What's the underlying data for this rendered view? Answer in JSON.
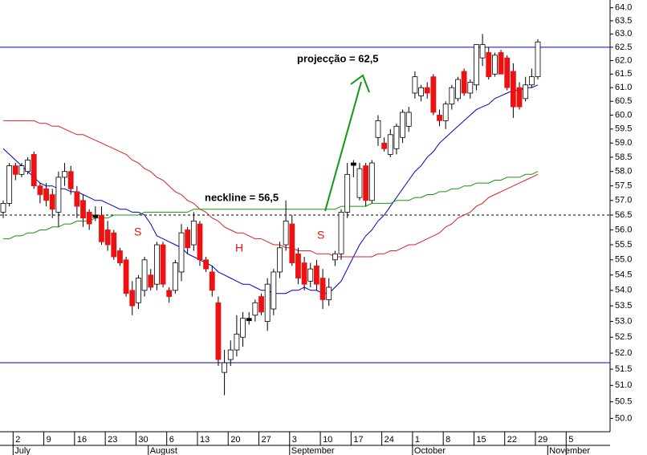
{
  "chart_data": {
    "type": "candlestick",
    "log_scale": true,
    "ylim": [
      49.6,
      64.3
    ],
    "yticks": [
      {
        "value": 50,
        "label": "50.0"
      },
      {
        "value": 50.5,
        "label": "50.5"
      },
      {
        "value": 51,
        "label": "51.0"
      },
      {
        "value": 51.5,
        "label": "51.5"
      },
      {
        "value": 52,
        "label": "52.0"
      },
      {
        "value": 52.5,
        "label": "52.5"
      },
      {
        "value": 53,
        "label": "53.0"
      },
      {
        "value": 53.5,
        "label": "53.5"
      },
      {
        "value": 54,
        "label": "54.0"
      },
      {
        "value": 54.5,
        "label": "54.5"
      },
      {
        "value": 55,
        "label": "55.0"
      },
      {
        "value": 55.5,
        "label": "55.5"
      },
      {
        "value": 56,
        "label": "56.0"
      },
      {
        "value": 56.5,
        "label": "56.5"
      },
      {
        "value": 57,
        "label": "57.0"
      },
      {
        "value": 57.5,
        "label": "57.5"
      },
      {
        "value": 58,
        "label": "58.0"
      },
      {
        "value": 58.5,
        "label": "58.5"
      },
      {
        "value": 59,
        "label": "59.0"
      },
      {
        "value": 59.5,
        "label": "59.5"
      },
      {
        "value": 60,
        "label": "60.0"
      },
      {
        "value": 60.5,
        "label": "60.5"
      },
      {
        "value": 61,
        "label": "61.0"
      },
      {
        "value": 61.5,
        "label": "61.5"
      },
      {
        "value": 62,
        "label": "62.0"
      },
      {
        "value": 62.5,
        "label": "62.5"
      },
      {
        "value": 63,
        "label": "63.0"
      },
      {
        "value": 63.5,
        "label": "63.5"
      },
      {
        "value": 64,
        "label": "64.0"
      }
    ],
    "categories": [
      null,
      null,
      "2",
      null,
      null,
      null,
      null,
      "9",
      null,
      null,
      null,
      null,
      "16",
      null,
      null,
      null,
      null,
      "23",
      null,
      null,
      null,
      null,
      "30",
      null,
      null,
      null,
      null,
      "6",
      null,
      null,
      null,
      null,
      "13",
      null,
      null,
      null,
      null,
      "20",
      null,
      null,
      null,
      null,
      "27",
      null,
      null,
      null,
      null,
      "3",
      null,
      null,
      null,
      null,
      "10",
      null,
      null,
      null,
      null,
      "17",
      null,
      null,
      null,
      null,
      "24",
      null,
      null,
      null,
      null,
      "1",
      null,
      null,
      null,
      null,
      "8",
      null,
      null,
      null,
      null,
      "15",
      null,
      null,
      null,
      null,
      "22",
      null,
      null,
      null,
      null,
      "29",
      null,
      null,
      null,
      null,
      "5"
    ],
    "months": [
      null,
      null,
      "July",
      null,
      null,
      null,
      null,
      null,
      null,
      null,
      null,
      null,
      null,
      null,
      null,
      null,
      null,
      null,
      null,
      null,
      null,
      null,
      null,
      null,
      "August",
      null,
      null,
      null,
      null,
      null,
      null,
      null,
      null,
      null,
      null,
      null,
      null,
      null,
      null,
      null,
      null,
      null,
      null,
      null,
      null,
      null,
      null,
      "September",
      null,
      null,
      null,
      null,
      null,
      null,
      null,
      null,
      null,
      null,
      null,
      null,
      null,
      null,
      null,
      null,
      null,
      null,
      null,
      "October",
      null,
      null,
      null,
      null,
      null,
      null,
      null,
      null,
      null,
      null,
      null,
      null,
      null,
      null,
      null,
      null,
      null,
      null,
      null,
      null,
      null,
      "November",
      null,
      null
    ],
    "up_color": "#ffffff",
    "down_color": "#ee1111",
    "flat_color": "#000000",
    "ohlc": [
      [
        56.6,
        57.0,
        56.4,
        56.9
      ],
      [
        56.9,
        58.3,
        56.8,
        58.2
      ],
      [
        58.2,
        58.3,
        57.7,
        57.9
      ],
      [
        57.9,
        58.3,
        57.8,
        58.2
      ],
      [
        58.0,
        58.5,
        57.9,
        58.4
      ],
      [
        58.6,
        58.7,
        57.4,
        57.5
      ],
      [
        57.5,
        57.6,
        56.9,
        57.2
      ],
      [
        57.4,
        57.6,
        56.8,
        57.0
      ],
      [
        57.2,
        57.4,
        56.4,
        56.7
      ],
      [
        56.6,
        58.0,
        56.1,
        57.8
      ],
      [
        57.8,
        58.3,
        57.5,
        58.0
      ],
      [
        58.0,
        58.2,
        57.2,
        57.4
      ],
      [
        57.3,
        57.5,
        56.4,
        56.8
      ],
      [
        57.0,
        57.2,
        56.1,
        56.4
      ],
      [
        56.6,
        56.7,
        56.0,
        56.2
      ],
      [
        56.5,
        56.8,
        56.3,
        56.5
      ],
      [
        56.5,
        56.8,
        55.5,
        55.6
      ],
      [
        56.0,
        56.3,
        55.3,
        55.5
      ],
      [
        55.9,
        56.0,
        55.0,
        55.1
      ],
      [
        55.3,
        55.4,
        54.8,
        54.9
      ],
      [
        55.0,
        55.1,
        53.8,
        53.9
      ],
      [
        54.0,
        54.3,
        53.2,
        53.5
      ],
      [
        53.6,
        54.5,
        53.4,
        54.4
      ],
      [
        54.0,
        55.1,
        53.8,
        55.0
      ],
      [
        54.5,
        54.7,
        54.0,
        54.1
      ],
      [
        54.2,
        55.6,
        54.0,
        55.5
      ],
      [
        55.5,
        55.6,
        54.1,
        54.2
      ],
      [
        54.0,
        54.1,
        53.6,
        53.8
      ],
      [
        54.0,
        55.0,
        53.9,
        54.9
      ],
      [
        54.6,
        56.2,
        54.3,
        55.9
      ],
      [
        56.0,
        56.1,
        55.2,
        55.4
      ],
      [
        55.5,
        56.6,
        55.3,
        56.3
      ],
      [
        56.2,
        56.3,
        54.8,
        55.0
      ],
      [
        55.0,
        55.1,
        54.6,
        54.7
      ],
      [
        54.6,
        54.8,
        53.8,
        54.0
      ],
      [
        53.6,
        53.8,
        51.6,
        51.8
      ],
      [
        51.4,
        52.1,
        50.7,
        51.7
      ],
      [
        51.8,
        52.4,
        51.6,
        52.1
      ],
      [
        52.1,
        53.2,
        51.9,
        52.6
      ],
      [
        52.5,
        53.3,
        52.2,
        53.1
      ],
      [
        53.1,
        53.3,
        52.9,
        53.1
      ],
      [
        53.2,
        53.7,
        53.0,
        53.6
      ],
      [
        53.8,
        53.9,
        53.2,
        53.3
      ],
      [
        53.0,
        54.4,
        52.7,
        54.2
      ],
      [
        53.4,
        54.7,
        53.2,
        54.6
      ],
      [
        54.6,
        55.6,
        54.4,
        55.4
      ],
      [
        55.5,
        57.0,
        55.3,
        56.3
      ],
      [
        56.2,
        56.5,
        54.8,
        54.9
      ],
      [
        55.2,
        55.4,
        54.2,
        54.4
      ],
      [
        54.9,
        55.1,
        54.0,
        54.2
      ],
      [
        54.3,
        54.9,
        54.1,
        54.7
      ],
      [
        54.8,
        55.0,
        54.0,
        54.2
      ],
      [
        54.4,
        54.7,
        53.4,
        53.7
      ],
      [
        53.7,
        54.4,
        53.5,
        54.1
      ],
      [
        55.0,
        55.3,
        54.8,
        55.2
      ],
      [
        55.2,
        56.7,
        55.0,
        56.6
      ],
      [
        56.6,
        58.3,
        56.4,
        57.9
      ],
      [
        58.3,
        58.4,
        57.8,
        58.3
      ],
      [
        57.1,
        58.3,
        57.0,
        58.1
      ],
      [
        58.2,
        58.3,
        56.8,
        57.0
      ],
      [
        57.0,
        58.4,
        56.9,
        58.3
      ],
      [
        59.2,
        60.0,
        58.9,
        59.8
      ],
      [
        59.0,
        59.2,
        58.7,
        58.8
      ],
      [
        58.6,
        59.5,
        58.5,
        59.3
      ],
      [
        58.8,
        59.7,
        58.6,
        59.6
      ],
      [
        59.2,
        60.2,
        59.0,
        60.1
      ],
      [
        59.6,
        60.3,
        59.4,
        60.1
      ],
      [
        60.8,
        61.6,
        60.6,
        61.4
      ],
      [
        60.7,
        61.1,
        60.5,
        61.0
      ],
      [
        61.0,
        61.2,
        60.6,
        60.8
      ],
      [
        61.4,
        61.5,
        60.0,
        60.1
      ],
      [
        60.0,
        60.2,
        59.6,
        59.8
      ],
      [
        59.8,
        60.5,
        59.5,
        60.4
      ],
      [
        60.4,
        61.1,
        60.2,
        61.0
      ],
      [
        60.6,
        61.4,
        60.5,
        61.3
      ],
      [
        61.6,
        61.7,
        60.7,
        60.8
      ],
      [
        60.8,
        61.3,
        60.6,
        61.2
      ],
      [
        61.1,
        62.6,
        60.9,
        62.6
      ],
      [
        62.1,
        63.0,
        61.8,
        62.6
      ],
      [
        62.3,
        62.5,
        61.3,
        61.4
      ],
      [
        61.5,
        62.3,
        61.4,
        62.2
      ],
      [
        62.3,
        62.4,
        61.5,
        61.5
      ],
      [
        62.1,
        62.2,
        60.9,
        61.0
      ],
      [
        61.6,
        61.9,
        59.9,
        60.3
      ],
      [
        61.0,
        61.2,
        60.2,
        60.3
      ],
      [
        60.6,
        61.4,
        60.5,
        61.1
      ],
      [
        61.1,
        61.7,
        61.0,
        61.4
      ],
      [
        61.4,
        62.8,
        61.3,
        62.7
      ],
      null,
      null,
      null,
      null,
      null
    ],
    "lines": [
      {
        "color": "#0000cc",
        "values": [
          58.8,
          58.6,
          58.4,
          58.2,
          58.0,
          57.8,
          57.6,
          57.5,
          57.5,
          57.4,
          57.4,
          57.3,
          57.3,
          57.2,
          57.1,
          57.0,
          57.0,
          56.9,
          56.8,
          56.7,
          56.7,
          56.6,
          56.6,
          56.5,
          56.2,
          55.8,
          55.7,
          55.6,
          55.5,
          55.4,
          55.2,
          55.1,
          55.0,
          54.9,
          54.8,
          54.6,
          54.5,
          54.4,
          54.3,
          54.2,
          54.2,
          54.1,
          54.0,
          54.0,
          53.9,
          53.9,
          53.9,
          54.0,
          54.0,
          54.1,
          54.0,
          54.0,
          53.9,
          53.9,
          54.1,
          54.3,
          54.7,
          55.1,
          55.5,
          55.8,
          56.0,
          56.3,
          56.5,
          56.8,
          57.1,
          57.4,
          57.7,
          58.0,
          58.2,
          58.5,
          58.7,
          59.0,
          59.2,
          59.4,
          59.6,
          59.8,
          60.0,
          60.2,
          60.3,
          60.4,
          60.6,
          60.7,
          60.8,
          60.9,
          60.9,
          61.0,
          61.0,
          61.1,
          null,
          null,
          null,
          null,
          null
        ]
      },
      {
        "color": "#dd2222",
        "values": [
          59.8,
          59.8,
          59.8,
          59.8,
          59.8,
          59.8,
          59.7,
          59.7,
          59.6,
          59.6,
          59.5,
          59.4,
          59.3,
          59.3,
          59.2,
          59.1,
          59.0,
          58.9,
          58.8,
          58.7,
          58.6,
          58.4,
          58.3,
          58.1,
          58.0,
          57.8,
          57.7,
          57.5,
          57.3,
          57.2,
          57.0,
          56.9,
          56.7,
          56.6,
          56.4,
          56.3,
          56.1,
          56.0,
          55.9,
          55.9,
          55.8,
          55.7,
          55.7,
          55.6,
          55.5,
          55.5,
          55.4,
          55.4,
          55.3,
          55.3,
          55.3,
          55.2,
          55.2,
          55.2,
          55.1,
          55.1,
          55.1,
          55.1,
          55.1,
          55.1,
          55.1,
          55.2,
          55.2,
          55.3,
          55.3,
          55.4,
          55.5,
          55.5,
          55.6,
          55.7,
          55.8,
          55.9,
          56.1,
          56.2,
          56.4,
          56.5,
          56.6,
          56.8,
          56.9,
          57.1,
          57.2,
          57.3,
          57.4,
          57.5,
          57.6,
          57.7,
          57.8,
          57.9,
          null,
          null,
          null,
          null,
          null
        ]
      },
      {
        "color": "#119911",
        "values": [
          55.7,
          55.7,
          55.8,
          55.8,
          55.9,
          55.9,
          56.0,
          56.0,
          56.1,
          56.1,
          56.2,
          56.2,
          56.3,
          56.3,
          56.3,
          56.4,
          56.4,
          56.4,
          56.5,
          56.5,
          56.5,
          56.5,
          56.5,
          56.6,
          56.6,
          56.6,
          56.6,
          56.6,
          56.6,
          56.6,
          56.6,
          56.7,
          56.7,
          56.7,
          56.7,
          56.7,
          56.7,
          56.7,
          56.7,
          56.7,
          56.7,
          56.7,
          56.7,
          56.7,
          56.7,
          56.7,
          56.7,
          56.7,
          56.7,
          56.7,
          56.7,
          56.7,
          56.7,
          56.7,
          56.7,
          56.8,
          56.8,
          56.8,
          56.8,
          56.8,
          56.9,
          56.9,
          56.9,
          56.9,
          57.0,
          57.0,
          57.0,
          57.1,
          57.1,
          57.2,
          57.2,
          57.3,
          57.3,
          57.4,
          57.4,
          57.5,
          57.5,
          57.6,
          57.6,
          57.6,
          57.7,
          57.7,
          57.8,
          57.8,
          57.8,
          57.9,
          57.9,
          58.0,
          null,
          null,
          null,
          null,
          null
        ]
      }
    ],
    "hlines": [
      {
        "value": 62.5,
        "color": "#0000cc"
      },
      {
        "value": 51.7,
        "color": "#0000cc"
      },
      {
        "value": 56.5,
        "color": "#000000",
        "dashed": true
      }
    ],
    "annotations": {
      "neckline": "neckline = 56,5",
      "projection": "projecção = 62,5",
      "s_left": "S",
      "h": "H",
      "s_right": "S"
    }
  }
}
